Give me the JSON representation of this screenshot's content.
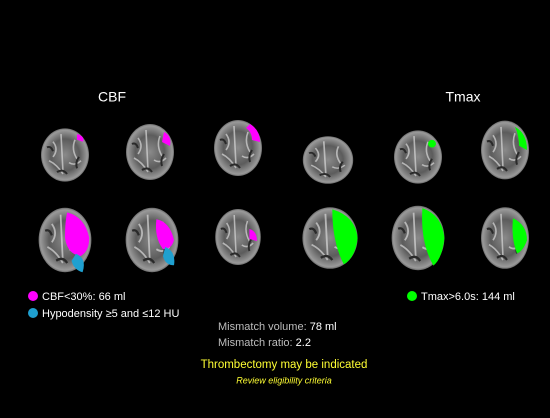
{
  "panels": {
    "left": "CBF",
    "right": "Tmax"
  },
  "legend": {
    "cbf": {
      "label": "CBF<30%:",
      "value": "66 ml"
    },
    "hypodensity": {
      "label": "Hypodensity ≥5 and ≤12 HU"
    },
    "tmax": {
      "label": "Tmax>6.0s:",
      "value": "144 ml"
    }
  },
  "mismatch": {
    "volume": {
      "label": "Mismatch volume:",
      "value": "78 ml"
    },
    "ratio": {
      "label": "Mismatch ratio:",
      "value": "2.2"
    }
  },
  "recommendation": {
    "title": "Thrombectomy may be indicated",
    "note": "Review eligibility criteria"
  }
}
